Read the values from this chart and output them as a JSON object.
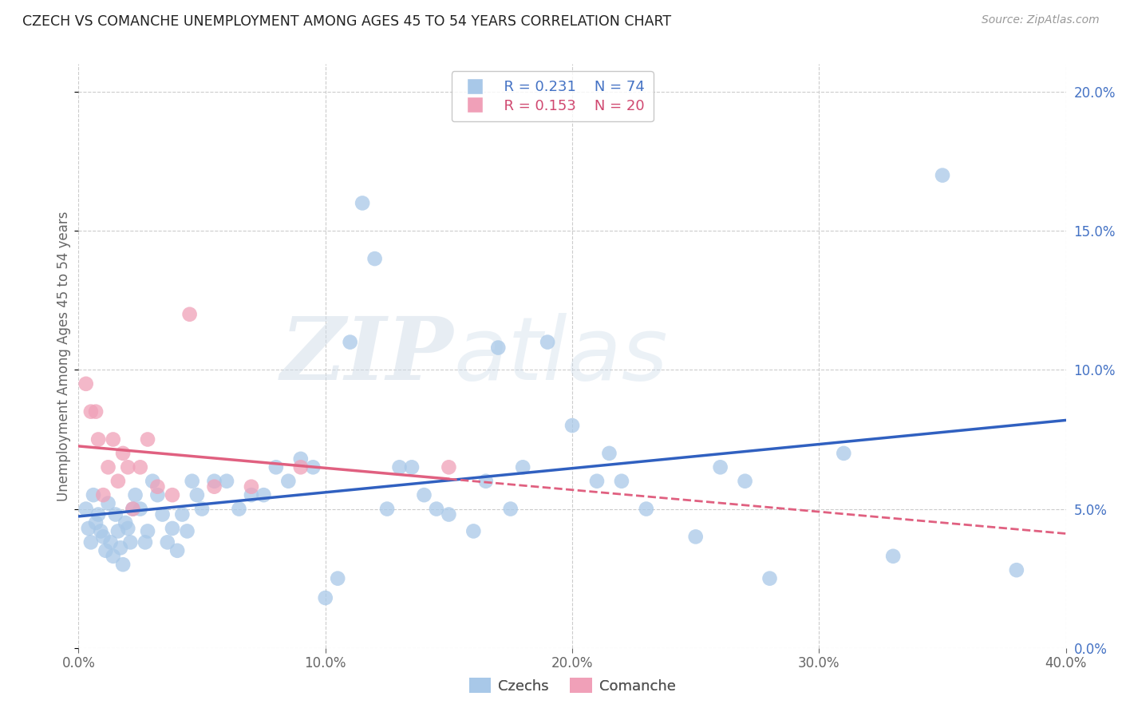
{
  "title": "CZECH VS COMANCHE UNEMPLOYMENT AMONG AGES 45 TO 54 YEARS CORRELATION CHART",
  "source": "Source: ZipAtlas.com",
  "ylabel": "Unemployment Among Ages 45 to 54 years",
  "xlim": [
    0.0,
    0.4
  ],
  "ylim": [
    0.0,
    0.21
  ],
  "xtick_positions": [
    0.0,
    0.1,
    0.2,
    0.3,
    0.4
  ],
  "xtick_labels": [
    "0.0%",
    "10.0%",
    "20.0%",
    "30.0%",
    "40.0%"
  ],
  "ytick_positions": [
    0.0,
    0.05,
    0.1,
    0.15,
    0.2
  ],
  "ytick_labels_right": [
    "0.0%",
    "5.0%",
    "10.0%",
    "15.0%",
    "20.0%"
  ],
  "legend_r_czech": "R = 0.231",
  "legend_n_czech": "N = 74",
  "legend_r_comanche": "R = 0.153",
  "legend_n_comanche": "N = 20",
  "czech_color": "#a8c8e8",
  "comanche_color": "#f0a0b8",
  "czech_line_color": "#3060c0",
  "comanche_line_color": "#e06080",
  "background_color": "#ffffff",
  "watermark_zip": "ZIP",
  "watermark_atlas": "atlas",
  "czechs_x": [
    0.003,
    0.004,
    0.005,
    0.006,
    0.007,
    0.008,
    0.009,
    0.01,
    0.011,
    0.012,
    0.013,
    0.014,
    0.015,
    0.016,
    0.017,
    0.018,
    0.019,
    0.02,
    0.021,
    0.022,
    0.023,
    0.025,
    0.027,
    0.028,
    0.03,
    0.032,
    0.034,
    0.036,
    0.038,
    0.04,
    0.042,
    0.044,
    0.046,
    0.048,
    0.05,
    0.055,
    0.06,
    0.065,
    0.07,
    0.075,
    0.08,
    0.085,
    0.09,
    0.095,
    0.1,
    0.105,
    0.11,
    0.115,
    0.12,
    0.125,
    0.13,
    0.135,
    0.14,
    0.145,
    0.15,
    0.16,
    0.165,
    0.17,
    0.175,
    0.18,
    0.19,
    0.2,
    0.21,
    0.215,
    0.22,
    0.23,
    0.25,
    0.26,
    0.27,
    0.28,
    0.31,
    0.33,
    0.35,
    0.38
  ],
  "czechs_y": [
    0.05,
    0.043,
    0.038,
    0.055,
    0.045,
    0.048,
    0.042,
    0.04,
    0.035,
    0.052,
    0.038,
    0.033,
    0.048,
    0.042,
    0.036,
    0.03,
    0.045,
    0.043,
    0.038,
    0.05,
    0.055,
    0.05,
    0.038,
    0.042,
    0.06,
    0.055,
    0.048,
    0.038,
    0.043,
    0.035,
    0.048,
    0.042,
    0.06,
    0.055,
    0.05,
    0.06,
    0.06,
    0.05,
    0.055,
    0.055,
    0.065,
    0.06,
    0.068,
    0.065,
    0.018,
    0.025,
    0.11,
    0.16,
    0.14,
    0.05,
    0.065,
    0.065,
    0.055,
    0.05,
    0.048,
    0.042,
    0.06,
    0.108,
    0.05,
    0.065,
    0.11,
    0.08,
    0.06,
    0.07,
    0.06,
    0.05,
    0.04,
    0.065,
    0.06,
    0.025,
    0.07,
    0.033,
    0.17,
    0.028
  ],
  "comanche_x": [
    0.003,
    0.005,
    0.007,
    0.008,
    0.01,
    0.012,
    0.014,
    0.016,
    0.018,
    0.02,
    0.022,
    0.025,
    0.028,
    0.032,
    0.038,
    0.045,
    0.055,
    0.07,
    0.09,
    0.15
  ],
  "comanche_y": [
    0.095,
    0.085,
    0.085,
    0.075,
    0.055,
    0.065,
    0.075,
    0.06,
    0.07,
    0.065,
    0.05,
    0.065,
    0.075,
    0.058,
    0.055,
    0.12,
    0.058,
    0.058,
    0.065,
    0.065
  ]
}
